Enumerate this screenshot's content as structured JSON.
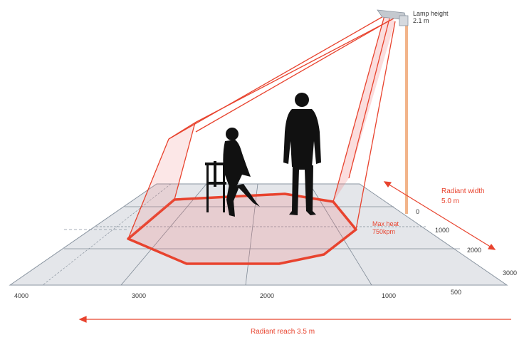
{
  "lamp": {
    "label_line1": "Lamp height",
    "label_line2": "2.1 m"
  },
  "radiant_width": {
    "label_line1": "Radiant width",
    "label_line2": "5.0 m"
  },
  "max_heat": {
    "label_line1": "Max heat",
    "label_line2": "750kpm"
  },
  "radiant_reach": {
    "label": "Radiant reach 3.5 m"
  },
  "x_ticks": [
    "4000",
    "3000",
    "2000",
    "1000",
    "500"
  ],
  "depth_ticks": [
    "0",
    "1000",
    "2000",
    "3000"
  ],
  "colors": {
    "accent": "#e8432e",
    "grid_fill": "#e4e6ea",
    "grid_line": "#7f8a96",
    "pole": "#f2b48a",
    "figure": "#111111"
  }
}
